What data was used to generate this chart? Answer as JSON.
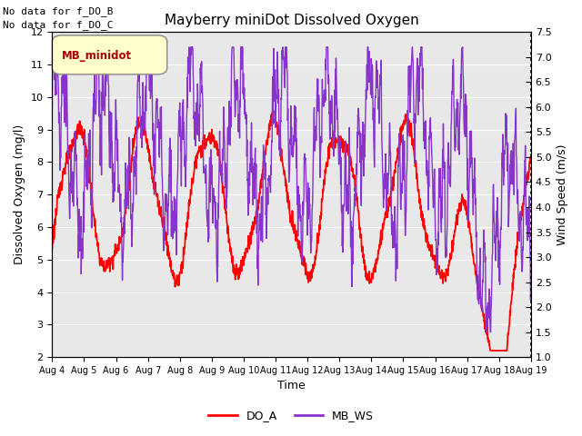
{
  "title": "Mayberry miniDot Dissolved Oxygen",
  "xlabel": "Time",
  "ylabel_left": "Dissolved Oxygen (mg/l)",
  "ylabel_right": "Wind Speed (m/s)",
  "top_left_text": [
    "No data for f_DO_B",
    "No data for f_DO_C"
  ],
  "legend_box_label": "MB_minidot",
  "legend_entries": [
    "DO_A",
    "MB_WS"
  ],
  "do_color": "#ff0000",
  "ws_color": "#8833cc",
  "do_linewidth": 1.3,
  "ws_linewidth": 1.0,
  "ylim_left": [
    2.0,
    12.0
  ],
  "ylim_right": [
    1.0,
    7.5
  ],
  "yticks_left": [
    2.0,
    3.0,
    4.0,
    5.0,
    6.0,
    7.0,
    8.0,
    9.0,
    10.0,
    11.0,
    12.0
  ],
  "yticks_right": [
    1.0,
    1.5,
    2.0,
    2.5,
    3.0,
    3.5,
    4.0,
    4.5,
    5.0,
    5.5,
    6.0,
    6.5,
    7.0,
    7.5
  ],
  "xtick_labels": [
    "Aug 4",
    "Aug 5",
    "Aug 6",
    "Aug 7",
    "Aug 8",
    "Aug 9",
    "Aug 10",
    "Aug 11",
    "Aug 12",
    "Aug 13",
    "Aug 14",
    "Aug 15",
    "Aug 16",
    "Aug 17",
    "Aug 18",
    "Aug 19"
  ],
  "n_days": 16,
  "background_color": "#e8e8e8",
  "grid_color": "#ffffff",
  "title_fontsize": 11,
  "label_fontsize": 9,
  "tick_fontsize": 8
}
